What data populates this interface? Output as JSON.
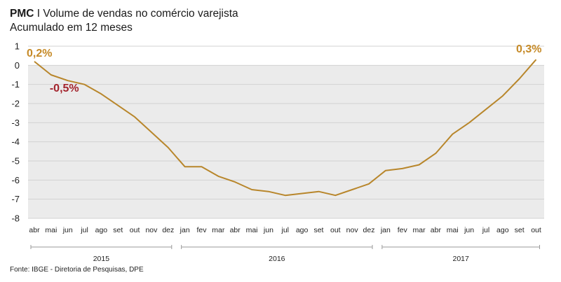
{
  "header": {
    "title_bold": "PMC",
    "title_rest": " I Volume de vendas no comércio varejista",
    "subtitle": "Acumulado em 12 meses"
  },
  "source": "Fonte: IBGE - Diretoria de Pesquisas, DPE",
  "colors": {
    "line": "#b8862b",
    "plot_bg": "#ebebeb",
    "label_gold": "#c68a27",
    "label_red": "#a3232c"
  },
  "chart_data": {
    "type": "line",
    "title": "PMC I Volume de vendas no comércio varejista",
    "subtitle": "Acumulado em 12 meses",
    "xlabel": "",
    "ylabel": "",
    "ylim": [
      -8,
      1
    ],
    "yticks": [
      1,
      0,
      -1,
      -2,
      -3,
      -4,
      -5,
      -6,
      -7,
      -8
    ],
    "grid": true,
    "categories": [
      "abr",
      "mai",
      "jun",
      "jul",
      "ago",
      "set",
      "out",
      "nov",
      "dez",
      "jan",
      "fev",
      "mar",
      "abr",
      "mai",
      "jun",
      "jul",
      "ago",
      "set",
      "out",
      "nov",
      "dez",
      "jan",
      "fev",
      "mar",
      "abr",
      "mai",
      "jun",
      "jul",
      "ago",
      "set",
      "out"
    ],
    "years": [
      {
        "label": "2015",
        "start": 0,
        "end": 8
      },
      {
        "label": "2016",
        "start": 9,
        "end": 20
      },
      {
        "label": "2017",
        "start": 21,
        "end": 30
      }
    ],
    "series": [
      {
        "name": "Volume de vendas",
        "values": [
          0.2,
          -0.5,
          -0.8,
          -1.0,
          -1.5,
          -2.1,
          -2.7,
          -3.5,
          -4.3,
          -5.3,
          -5.3,
          -5.8,
          -6.1,
          -6.5,
          -6.6,
          -6.8,
          -6.7,
          -6.6,
          -6.8,
          -6.5,
          -6.2,
          -5.5,
          -5.4,
          -5.2,
          -4.6,
          -3.6,
          -3.0,
          -2.3,
          -1.6,
          -0.7,
          0.3
        ]
      }
    ],
    "annotations": [
      {
        "text": "0,2%",
        "index": 0,
        "color": "gold"
      },
      {
        "text": "-0,5%",
        "index": 1,
        "color": "red"
      },
      {
        "text": "0,3%",
        "index": 30,
        "color": "gold"
      }
    ]
  }
}
